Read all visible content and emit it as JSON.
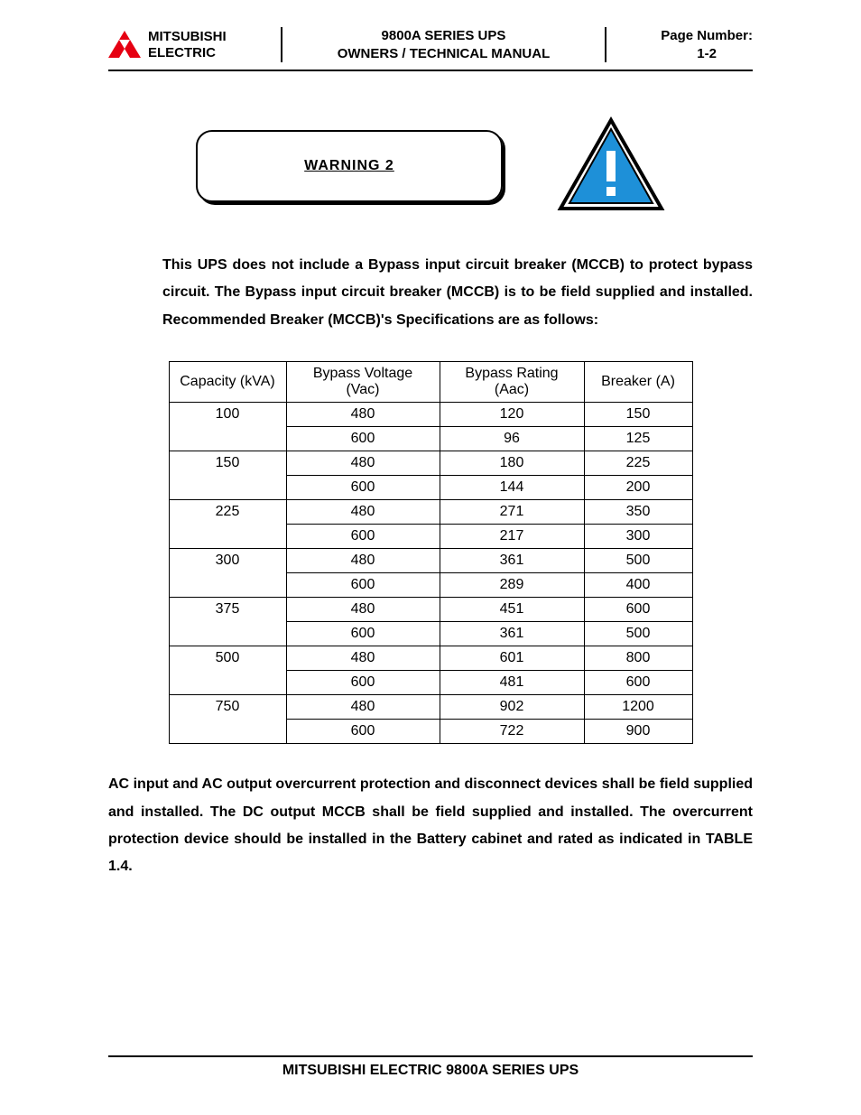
{
  "header": {
    "brand1": "MITSUBISHI",
    "brand2": "ELECTRIC",
    "title1": "9800A SERIES UPS",
    "title2": "OWNERS / TECHNICAL MANUAL",
    "page_label": "Page Number:",
    "page_num": "1-2",
    "logo_color": "#e60012"
  },
  "warning": {
    "label": "WARNING   2",
    "icon_fill": "#1e90d8",
    "icon_stroke": "#000000"
  },
  "paragraph1": "This UPS does not include a Bypass input circuit breaker (MCCB) to protect bypass circuit. The Bypass input circuit breaker (MCCB) is to be field supplied and installed. Recommended Breaker (MCCB)'s Specifications are as follows:",
  "table": {
    "columns": [
      "Capacity (kVA)",
      "Bypass Voltage (Vac)",
      "Bypass Rating (Aac)",
      "Breaker (A)"
    ],
    "groups": [
      {
        "capacity": "100",
        "rows": [
          [
            "480",
            "120",
            "150"
          ],
          [
            "600",
            "96",
            "125"
          ]
        ]
      },
      {
        "capacity": "150",
        "rows": [
          [
            "480",
            "180",
            "225"
          ],
          [
            "600",
            "144",
            "200"
          ]
        ]
      },
      {
        "capacity": "225",
        "rows": [
          [
            "480",
            "271",
            "350"
          ],
          [
            "600",
            "217",
            "300"
          ]
        ]
      },
      {
        "capacity": "300",
        "rows": [
          [
            "480",
            "361",
            "500"
          ],
          [
            "600",
            "289",
            "400"
          ]
        ]
      },
      {
        "capacity": "375",
        "rows": [
          [
            "480",
            "451",
            "600"
          ],
          [
            "600",
            "361",
            "500"
          ]
        ]
      },
      {
        "capacity": "500",
        "rows": [
          [
            "480",
            "601",
            "800"
          ],
          [
            "600",
            "481",
            "600"
          ]
        ]
      },
      {
        "capacity": "750",
        "rows": [
          [
            "480",
            "902",
            "1200"
          ],
          [
            "600",
            "722",
            "900"
          ]
        ]
      }
    ],
    "col_widths": [
      "130px",
      "170px",
      "160px",
      "120px"
    ]
  },
  "paragraph2": "AC input and AC output overcurrent protection and disconnect devices shall be field supplied and installed. The DC output MCCB shall be field supplied and installed. The overcurrent protection device should be installed in the Battery cabinet and rated as indicated in TABLE 1.4.",
  "footer": "MITSUBISHI ELECTRIC 9800A SERIES UPS"
}
